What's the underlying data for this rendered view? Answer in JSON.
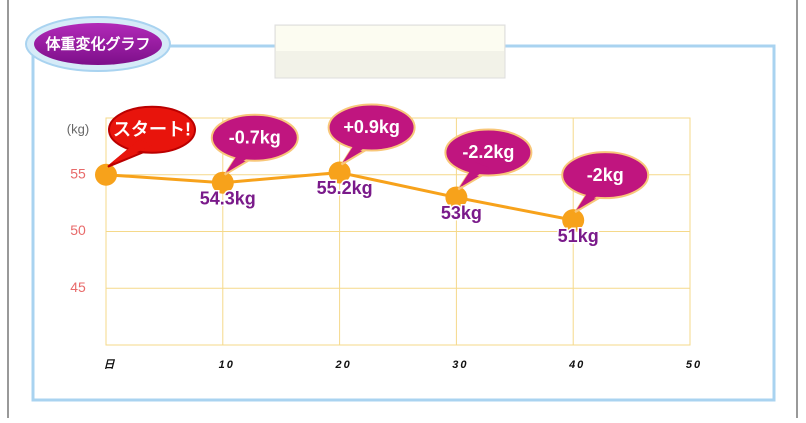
{
  "chart_data": {
    "type": "line",
    "title": "体重変化グラフ",
    "y_label": "(kg)",
    "x": [
      0,
      10,
      20,
      30,
      40
    ],
    "values": [
      55,
      54.3,
      55.2,
      53,
      51
    ],
    "value_labels": [
      null,
      "54.3kg",
      "55.2kg",
      "53kg",
      "51kg"
    ],
    "annotations": [
      "スタート!",
      "-0.7kg",
      "+0.9kg",
      "-2.2kg",
      "-2kg"
    ],
    "color": "#f7a21b",
    "xlim": [
      0,
      50
    ],
    "xticks": [
      {
        "value": 0,
        "label": "日"
      },
      10,
      20,
      30,
      40,
      50
    ],
    "ylim": [
      40,
      60
    ],
    "yticks": [
      45,
      50,
      55
    ],
    "grid": true
  }
}
